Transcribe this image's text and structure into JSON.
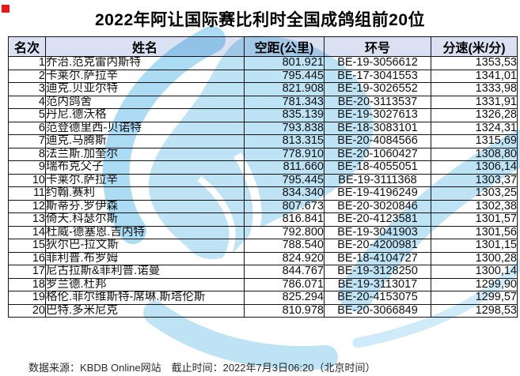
{
  "title": "2022年阿让国际赛比利时全国成鸽组前20位",
  "table": {
    "columns": [
      "名次",
      "姓名",
      "空距(公里)",
      "环号",
      "分速(米/分)"
    ],
    "rows": [
      [
        "1",
        "乔治.范克雷内斯特",
        "801.921",
        "BE-19-3056612",
        "1353,53"
      ],
      [
        "2",
        "卡莱尔.萨拉辛",
        "795.445",
        "BE-17-3041553",
        "1341,01"
      ],
      [
        "3",
        "迪克.贝亚尔特",
        "821.908",
        "BE-19-3026552",
        "1333,98"
      ],
      [
        "4",
        "范内鸽舍",
        "781.343",
        "BE-20-3113537",
        "1331,91"
      ],
      [
        "5",
        "丹尼.德沃格",
        "835.139",
        "BE-19-3027613",
        "1326,28"
      ],
      [
        "6",
        "范登德里西-贝诺特",
        "793.838",
        "BE-18-3083101",
        "1324,31"
      ],
      [
        "7",
        "迪克.马腾斯",
        "813.315",
        "BE-20-4084566",
        "1315,69"
      ],
      [
        "8",
        "法兰斯.加奎尔",
        "778.910",
        "BE-20-1060427",
        "1308,80"
      ],
      [
        "9",
        "瑞布克父子",
        "811.660",
        "BE-18-4055051",
        "1306,14"
      ],
      [
        "10",
        "卡莱尔.萨拉辛",
        "795.445",
        "BE-19-3111368",
        "1303,37"
      ],
      [
        "11",
        "约翰.赛利",
        "834.340",
        "BE-19-4196249",
        "1303,25"
      ],
      [
        "12",
        "斯蒂芬.罗伊森",
        "807.673",
        "BE-20-3020846",
        "1302,38"
      ],
      [
        "13",
        "倚天.科瑟尔斯",
        "816.841",
        "BE-20-4123581",
        "1301,57"
      ],
      [
        "14",
        "杜威-德塞恩.吉内特",
        "792.800",
        "BE-19-3041903",
        "1301,56"
      ],
      [
        "15",
        "狄尔巴-拉文斯",
        "788.540",
        "BE-20-4200981",
        "1301,15"
      ],
      [
        "16",
        "菲利普.布罗姆",
        "824.920",
        "BE-18-4104727",
        "1300,28"
      ],
      [
        "17",
        "尼古拉斯&菲利普.诺曼",
        "844.767",
        "BE-19-3128250",
        "1300,14"
      ],
      [
        "18",
        "罗兰德.杜邦",
        "786.071",
        "BE-19-3113017",
        "1299,90"
      ],
      [
        "19",
        "格伦.菲尔维斯特-席琳.斯塔伦斯",
        "825.294",
        "BE-20-4153075",
        "1299,57"
      ],
      [
        "20",
        "巴特.多米尼克",
        "810.978",
        "BE-20-3066849",
        "1298,53"
      ]
    ]
  },
  "footer": "数据来源：KBDB Online网站　截止时间：2022年7月3日06:20（北京时间）",
  "colors": {
    "header_bg": "#d9e1f2",
    "border": "#141414",
    "watermark_blue": "#bee3f5",
    "watermark_blue_dark": "#abdcf4",
    "marker_red": "#e8181c"
  }
}
